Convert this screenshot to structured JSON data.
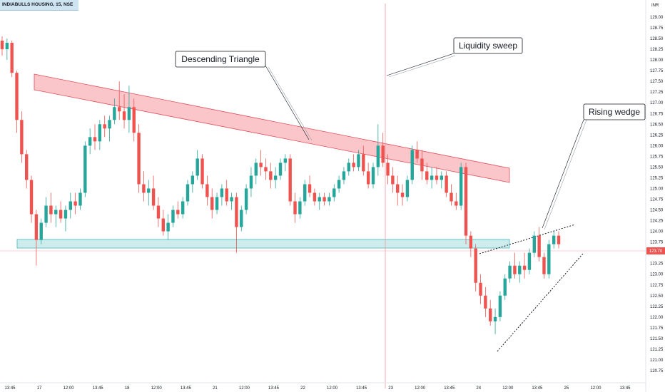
{
  "chart_data": {
    "type": "candlestick",
    "symbol_header": "INDIABULLS HOUSING, 15, NSE",
    "currency": "INR",
    "y_ticks": [
      "129.00",
      "128.75",
      "128.50",
      "128.25",
      "128.00",
      "127.75",
      "127.50",
      "127.25",
      "127.00",
      "126.75",
      "126.50",
      "126.25",
      "126.00",
      "125.75",
      "125.50",
      "125.25",
      "125.00",
      "124.75",
      "124.50",
      "124.25",
      "124.00",
      "123.75",
      "123.50",
      "123.25",
      "123.00",
      "122.75",
      "122.50",
      "122.25",
      "122.00",
      "121.75",
      "121.50",
      "121.25",
      "121.00",
      "120.75"
    ],
    "ylim": [
      120.75,
      129.25
    ],
    "x_ticks": [
      "13:45",
      "17",
      "12:00",
      "13:45",
      "18",
      "12:00",
      "13:45",
      "21",
      "12:00",
      "13:45",
      "22",
      "12:00",
      "13:45",
      "23",
      "12:00",
      "13:45",
      "24",
      "12:00",
      "13:45",
      "25",
      "12:00",
      "13:45"
    ],
    "last_price": "123.70",
    "up_color": "#26a69a",
    "down_color": "#ef5350",
    "annotations": {
      "descending_triangle": "Descending Triangle",
      "liquidity_sweep": "Liquidity sweep",
      "rising_wedge": "Rising wedge"
    },
    "candles": [
      [
        128.45,
        128.55,
        128.1,
        128.25
      ],
      [
        128.25,
        128.5,
        128.0,
        128.4
      ],
      [
        128.4,
        128.45,
        127.6,
        127.7
      ],
      [
        127.7,
        127.75,
        126.3,
        126.6
      ],
      [
        126.6,
        126.8,
        125.6,
        125.8
      ],
      [
        125.8,
        125.9,
        125.0,
        125.2
      ],
      [
        125.2,
        125.3,
        124.2,
        124.4
      ],
      [
        124.4,
        124.5,
        123.2,
        123.8
      ],
      [
        123.8,
        124.3,
        123.7,
        124.2
      ],
      [
        124.2,
        124.8,
        124.1,
        124.6
      ],
      [
        124.6,
        124.9,
        124.2,
        124.4
      ],
      [
        124.4,
        124.6,
        124.1,
        124.5
      ],
      [
        124.5,
        124.7,
        124.2,
        124.3
      ],
      [
        124.3,
        124.6,
        124.0,
        124.5
      ],
      [
        124.5,
        124.9,
        124.3,
        124.7
      ],
      [
        124.7,
        124.9,
        124.4,
        124.6
      ],
      [
        124.6,
        125.0,
        124.5,
        124.9
      ],
      [
        124.9,
        126.1,
        124.8,
        126.0
      ],
      [
        126.0,
        126.4,
        125.8,
        126.2
      ],
      [
        126.2,
        126.5,
        125.9,
        126.1
      ],
      [
        126.1,
        126.6,
        125.9,
        126.5
      ],
      [
        126.5,
        126.7,
        126.2,
        126.4
      ],
      [
        126.4,
        126.7,
        126.1,
        126.6
      ],
      [
        126.6,
        127.1,
        126.5,
        126.9
      ],
      [
        126.9,
        127.5,
        126.6,
        126.8
      ],
      [
        126.8,
        127.2,
        126.4,
        126.6
      ],
      [
        126.6,
        127.4,
        126.3,
        126.9
      ],
      [
        126.9,
        127.1,
        126.1,
        126.3
      ],
      [
        126.3,
        126.5,
        124.9,
        125.1
      ],
      [
        125.1,
        125.4,
        124.7,
        124.9
      ],
      [
        124.9,
        125.2,
        124.6,
        125.0
      ],
      [
        125.0,
        125.3,
        124.5,
        124.6
      ],
      [
        124.6,
        124.8,
        124.1,
        124.3
      ],
      [
        124.3,
        124.5,
        123.9,
        124.0
      ],
      [
        124.0,
        124.4,
        123.8,
        124.2
      ],
      [
        124.2,
        124.6,
        124.1,
        124.5
      ],
      [
        124.5,
        124.7,
        124.3,
        124.4
      ],
      [
        124.4,
        124.8,
        124.3,
        124.7
      ],
      [
        124.7,
        125.2,
        124.6,
        125.1
      ],
      [
        125.1,
        125.4,
        124.9,
        125.3
      ],
      [
        125.3,
        125.9,
        125.2,
        125.7
      ],
      [
        125.7,
        125.8,
        125.0,
        125.1
      ],
      [
        125.1,
        125.3,
        124.6,
        124.8
      ],
      [
        124.8,
        125.0,
        124.3,
        124.5
      ],
      [
        124.5,
        124.9,
        124.4,
        124.8
      ],
      [
        124.8,
        125.1,
        124.6,
        125.0
      ],
      [
        125.0,
        125.2,
        124.6,
        124.7
      ],
      [
        124.7,
        124.9,
        124.5,
        124.8
      ],
      [
        124.8,
        124.9,
        123.5,
        124.1
      ],
      [
        124.1,
        124.6,
        124.0,
        124.5
      ],
      [
        124.5,
        125.1,
        124.4,
        125.0
      ],
      [
        125.0,
        125.5,
        124.8,
        125.3
      ],
      [
        125.3,
        125.7,
        125.1,
        125.6
      ],
      [
        125.6,
        125.9,
        125.3,
        125.5
      ],
      [
        125.5,
        125.7,
        125.2,
        125.4
      ],
      [
        125.4,
        125.6,
        125.0,
        125.2
      ],
      [
        125.2,
        125.5,
        125.0,
        125.3
      ],
      [
        125.3,
        125.7,
        125.2,
        125.6
      ],
      [
        125.6,
        125.8,
        125.4,
        125.7
      ],
      [
        125.7,
        125.8,
        124.6,
        124.7
      ],
      [
        124.7,
        124.9,
        124.2,
        124.4
      ],
      [
        124.4,
        124.8,
        124.3,
        124.7
      ],
      [
        124.7,
        125.2,
        124.6,
        125.1
      ],
      [
        125.1,
        125.3,
        124.8,
        124.9
      ],
      [
        124.9,
        125.0,
        124.6,
        124.7
      ],
      [
        124.7,
        124.9,
        124.5,
        124.8
      ],
      [
        124.8,
        124.9,
        124.6,
        124.7
      ],
      [
        124.7,
        124.9,
        124.6,
        124.8
      ],
      [
        124.8,
        125.1,
        124.7,
        125.0
      ],
      [
        125.0,
        125.3,
        124.9,
        125.2
      ],
      [
        125.2,
        125.5,
        125.1,
        125.4
      ],
      [
        125.4,
        125.7,
        125.3,
        125.6
      ],
      [
        125.6,
        125.8,
        125.4,
        125.5
      ],
      [
        125.5,
        125.9,
        125.4,
        125.8
      ],
      [
        125.8,
        126.0,
        125.3,
        125.4
      ],
      [
        125.4,
        125.6,
        125.0,
        125.1
      ],
      [
        125.1,
        125.6,
        125.0,
        125.5
      ],
      [
        125.5,
        126.5,
        125.3,
        126.0
      ],
      [
        126.0,
        126.3,
        125.5,
        125.6
      ],
      [
        125.6,
        125.8,
        125.1,
        125.3
      ],
      [
        125.3,
        125.5,
        124.9,
        125.1
      ],
      [
        125.1,
        125.3,
        124.6,
        124.9
      ],
      [
        124.9,
        125.1,
        124.6,
        124.8
      ],
      [
        124.8,
        125.3,
        124.7,
        125.2
      ],
      [
        125.2,
        126.0,
        125.1,
        125.9
      ],
      [
        125.9,
        126.1,
        125.6,
        125.7
      ],
      [
        125.7,
        125.9,
        125.2,
        125.4
      ],
      [
        125.4,
        125.6,
        125.1,
        125.2
      ],
      [
        125.2,
        125.5,
        125.0,
        125.3
      ],
      [
        125.3,
        125.5,
        125.1,
        125.2
      ],
      [
        125.2,
        125.4,
        125.0,
        125.3
      ],
      [
        125.3,
        125.4,
        124.8,
        124.9
      ],
      [
        124.9,
        125.1,
        124.6,
        124.7
      ],
      [
        124.7,
        124.9,
        124.5,
        124.6
      ],
      [
        124.6,
        125.6,
        124.5,
        125.5
      ],
      [
        125.5,
        125.6,
        123.7,
        123.9
      ],
      [
        123.9,
        124.0,
        123.4,
        123.6
      ],
      [
        123.6,
        123.7,
        122.6,
        122.8
      ],
      [
        122.8,
        123.0,
        122.3,
        122.5
      ],
      [
        122.5,
        122.7,
        122.0,
        122.2
      ],
      [
        122.2,
        122.4,
        121.8,
        121.9
      ],
      [
        121.9,
        122.2,
        121.6,
        122.0
      ],
      [
        122.0,
        122.6,
        121.9,
        122.5
      ],
      [
        122.5,
        123.0,
        122.4,
        122.9
      ],
      [
        122.9,
        123.3,
        122.8,
        123.2
      ],
      [
        123.2,
        123.5,
        122.9,
        123.0
      ],
      [
        123.0,
        123.3,
        122.8,
        123.2
      ],
      [
        123.2,
        123.5,
        122.9,
        123.1
      ],
      [
        123.1,
        123.6,
        123.0,
        123.5
      ],
      [
        123.5,
        124.0,
        123.4,
        123.9
      ],
      [
        123.9,
        124.1,
        123.3,
        123.4
      ],
      [
        123.4,
        123.5,
        122.9,
        123.0
      ],
      [
        123.0,
        123.8,
        122.9,
        123.7
      ],
      [
        123.7,
        124.0,
        123.6,
        123.9
      ],
      [
        123.9,
        124.0,
        123.6,
        123.7
      ]
    ]
  }
}
